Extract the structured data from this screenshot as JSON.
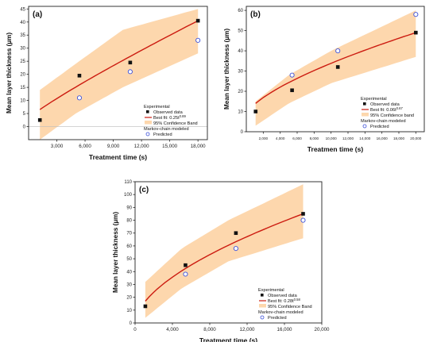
{
  "colors": {
    "band": "#fdd7ad",
    "fit_line": "#cc1b10",
    "observed": "#111111",
    "predicted": "#3b4fd8",
    "axis": "#222222"
  },
  "chart_data": [
    {
      "type": "scatter",
      "panel_label": "(a)",
      "xlabel": "Treatment time (s)",
      "ylabel": "Mean layer thickness (µm)",
      "xlim": [
        0,
        19000
      ],
      "ylim": [
        -5,
        46
      ],
      "xticks": [
        3000,
        6000,
        9000,
        12000,
        15000,
        18000
      ],
      "xtick_labels": [
        "3,000",
        "6,000",
        "9,000",
        "12,000",
        "15,000",
        "18,000"
      ],
      "yticks": [
        0,
        5,
        10,
        15,
        20,
        25,
        30,
        35,
        40,
        45
      ],
      "series": [
        {
          "name": "Observed data",
          "marker": "square",
          "x": [
            1200,
            5400,
            10800,
            18000
          ],
          "y": [
            2.5,
            19.5,
            24.5,
            40.5
          ]
        },
        {
          "name": "Predicted",
          "marker": "circle",
          "x": [
            5400,
            10800,
            18000
          ],
          "y": [
            11,
            21,
            33
          ]
        }
      ],
      "fit": {
        "coef": 0.25,
        "exp": 0.89,
        "x_range": [
          1200,
          18000
        ]
      },
      "band": {
        "lower": [
          [
            1200,
            -5
          ],
          [
            5000,
            5
          ],
          [
            10000,
            15
          ],
          [
            18000,
            28
          ]
        ],
        "upper": [
          [
            1200,
            14
          ],
          [
            5000,
            24
          ],
          [
            10000,
            37
          ],
          [
            18000,
            45
          ]
        ]
      },
      "legend": {
        "title": "Experimental",
        "observed": "Observed data",
        "fit_prefix": "Best fit: 0.25t",
        "fit_exp": "0.89",
        "band": "95% Confidence Band",
        "model_title": "Markov-chain modeled",
        "predicted": "Predicted"
      }
    },
    {
      "type": "scatter",
      "panel_label": "(b)",
      "xlabel": "Treatmen time (s)",
      "ylabel": "Mean layer thickness (µm)",
      "xlim": [
        0,
        21000
      ],
      "ylim": [
        0,
        62
      ],
      "xticks": [
        2000,
        4000,
        6000,
        8000,
        10000,
        12000,
        14000,
        16000,
        18000,
        20000
      ],
      "xtick_labels": [
        "2,000",
        "4,000",
        "6,000",
        "8,000",
        "10,000",
        "12,000",
        "14,000",
        "16,000",
        "18,000",
        "20,000"
      ],
      "yticks": [
        0,
        10,
        20,
        30,
        40,
        50,
        60
      ],
      "series": [
        {
          "name": "Observed data",
          "marker": "square",
          "x": [
            1100,
            5400,
            10800,
            20000
          ],
          "y": [
            10,
            20.5,
            32,
            49
          ]
        },
        {
          "name": "Predicted",
          "marker": "circle",
          "x": [
            5400,
            10800,
            20000
          ],
          "y": [
            28,
            40,
            58
          ]
        }
      ],
      "fit": {
        "coef": 0.06,
        "exp": 0.67,
        "x_range": [
          1100,
          20000
        ]
      },
      "band": {
        "lower": [
          [
            1100,
            3
          ],
          [
            5000,
            14
          ],
          [
            10000,
            24
          ],
          [
            20000,
            37
          ]
        ],
        "upper": [
          [
            1100,
            15
          ],
          [
            5000,
            28
          ],
          [
            10000,
            40
          ],
          [
            20000,
            60
          ]
        ]
      },
      "legend": {
        "title": "Experimental",
        "observed": "Observed data",
        "fit_prefix": "Best fit: 0.06t",
        "fit_exp": "0.67",
        "band": "95% Confidence band",
        "model_title": "Markov-chain modeled",
        "predicted": "Predicted"
      }
    },
    {
      "type": "scatter",
      "panel_label": "(c)",
      "xlabel": "Treatment time (s)",
      "ylabel": "Mean layer thickness (µm)",
      "xlim": [
        0,
        20000
      ],
      "ylim": [
        0,
        110
      ],
      "xticks": [
        0,
        4000,
        8000,
        12000,
        16000,
        20000
      ],
      "xtick_labels": [
        "0",
        "4,000",
        "8,000",
        "12,000",
        "16,000",
        "20,000"
      ],
      "yticks": [
        0,
        10,
        20,
        30,
        40,
        50,
        60,
        70,
        80,
        90,
        100,
        110
      ],
      "series": [
        {
          "name": "Observed data",
          "marker": "square",
          "x": [
            1100,
            5400,
            10800,
            18000
          ],
          "y": [
            13,
            45,
            70,
            85
          ]
        },
        {
          "name": "Predicted",
          "marker": "circle",
          "x": [
            5400,
            10800,
            18000
          ],
          "y": [
            38,
            58,
            80
          ]
        }
      ],
      "fit": {
        "coef": 0.28,
        "exp": 0.58,
        "x_range": [
          1100,
          18000
        ]
      },
      "band": {
        "lower": [
          [
            1100,
            4
          ],
          [
            5000,
            27
          ],
          [
            10000,
            48
          ],
          [
            18000,
            66
          ]
        ],
        "upper": [
          [
            1100,
            32
          ],
          [
            5000,
            58
          ],
          [
            10000,
            80
          ],
          [
            18000,
            108
          ]
        ]
      },
      "legend": {
        "title": "Experimental",
        "observed": "Observed data",
        "fit_prefix": "Best fit: 0.28t",
        "fit_exp": "0.58",
        "band": "95% Confidence Band",
        "model_title": "Markov-chain modeled",
        "predicted": "Predicted"
      }
    }
  ]
}
